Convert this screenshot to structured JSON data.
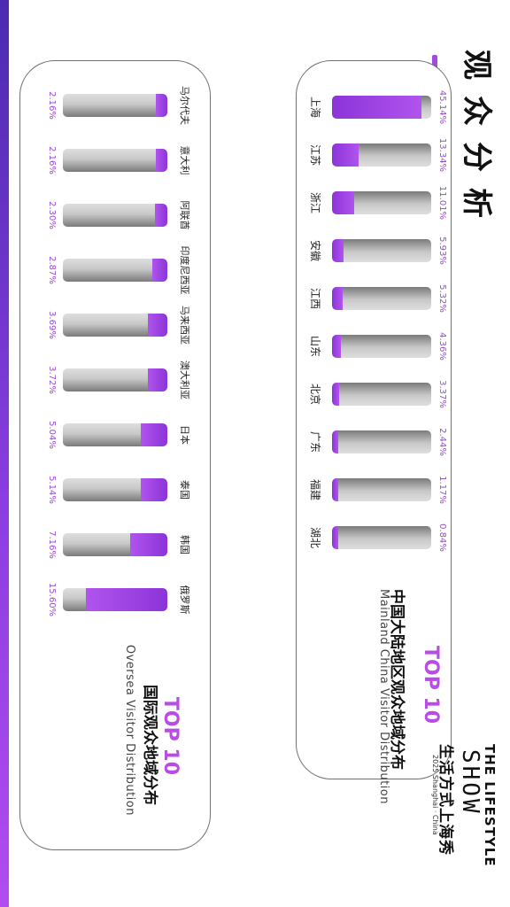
{
  "page": {
    "title": "观众分析"
  },
  "colors": {
    "accent": "#a548e6",
    "bar_fill": "#9b3fe0",
    "bar_track": "#c8c8c8",
    "percent_text": "#9a4ad6"
  },
  "brand": {
    "name_en": "THE LIFESTYLE",
    "wordmark": "SHOW",
    "name_zh": "生活方式上海秀",
    "sub": "2025 Shanghai · China"
  },
  "mainland": {
    "heading": "TOP 10",
    "subtitle_zh": "中国大陆地区观众地域分布",
    "subtitle_en": "Mainland China Visitor Distribution"
  },
  "overseas": {
    "heading": "TOP 10",
    "subtitle_zh": "国际观众地域分布",
    "subtitle_en": "Oversea Visitor Distribution"
  },
  "chart_data": [
    {
      "type": "bar",
      "title": "中国大陆地区观众地域分布",
      "categories": [
        "上海",
        "江苏",
        "浙江",
        "安徽",
        "江西",
        "山东",
        "北京",
        "广东",
        "福建",
        "湖北"
      ],
      "values": [
        45.14,
        13.34,
        11.01,
        5.93,
        5.32,
        4.36,
        3.37,
        2.44,
        1.17,
        0.84
      ],
      "labels": [
        "45.14%",
        "13.34%",
        "11.01%",
        "5.93%",
        "5.32%",
        "4.36%",
        "3.37%",
        "2.44%",
        "1.17%",
        "0.84%"
      ],
      "ylim": [
        0,
        50
      ]
    },
    {
      "type": "bar",
      "title": "国际观众地域分布",
      "categories": [
        "俄罗斯",
        "韩国",
        "泰国",
        "日本",
        "澳大利亚",
        "马来西亚",
        "印度尼西亚",
        "阿联酋",
        "意大利",
        "马尔代夫"
      ],
      "values": [
        15.6,
        7.16,
        5.14,
        5.04,
        3.72,
        3.69,
        2.87,
        2.3,
        2.16,
        2.16
      ],
      "labels": [
        "15.60%",
        "7.16%",
        "5.14%",
        "5.04%",
        "3.72%",
        "3.69%",
        "2.87%",
        "2.30%",
        "2.16%",
        "2.16%"
      ],
      "ylim": [
        0,
        20
      ]
    }
  ]
}
